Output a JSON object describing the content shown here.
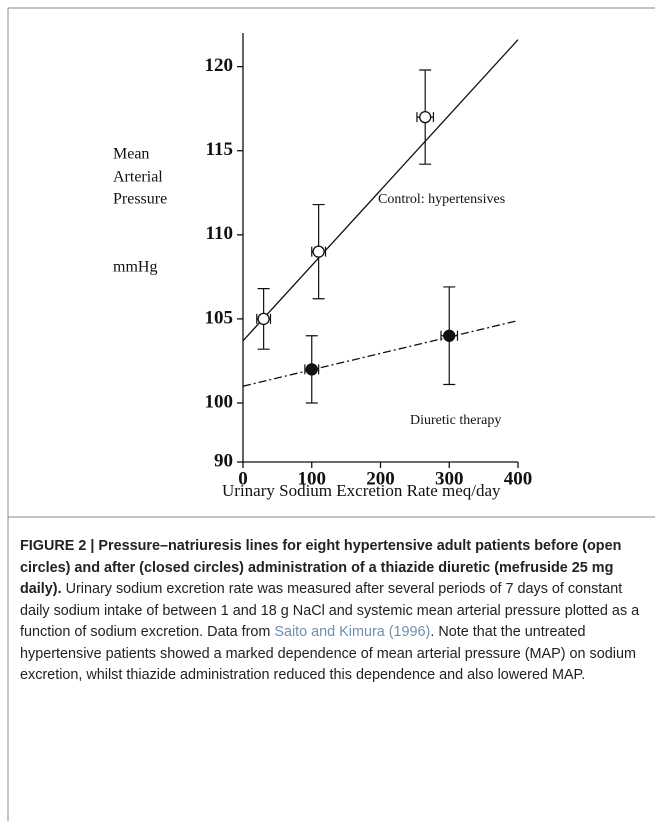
{
  "chart_data": {
    "type": "errorbar-scatter",
    "ylabel": [
      "Mean",
      "Arterial",
      "Pressure"
    ],
    "yunit": "mmHg",
    "xlabel": "Urinary Sodium Excretion Rate meq/day",
    "xlim": [
      0,
      400
    ],
    "xticks": [
      0,
      100,
      200,
      300,
      400
    ],
    "ylim": [
      90,
      122
    ],
    "ybreak": [
      90,
      100
    ],
    "yticks": [
      90,
      100,
      105,
      110,
      115,
      120
    ],
    "series": [
      {
        "name": "Control: hypertensives",
        "marker": "open",
        "color": "#111111",
        "x": [
          30,
          110,
          265
        ],
        "values": [
          105,
          109,
          117
        ],
        "errors": [
          1.8,
          2.8,
          2.8
        ],
        "xerrors": [
          10,
          10,
          12
        ],
        "line": {
          "style": "solid",
          "x": [
            0,
            400
          ],
          "values": [
            103.7,
            121.6
          ]
        }
      },
      {
        "name": "Diuretic therapy",
        "marker": "filled",
        "color": "#111111",
        "x": [
          100,
          300
        ],
        "values": [
          102,
          104
        ],
        "errors": [
          2,
          2.9
        ],
        "xerrors": [
          10,
          12
        ],
        "line": {
          "style": "dashdot",
          "x": [
            0,
            400
          ],
          "values": [
            101,
            104.9
          ]
        }
      }
    ]
  },
  "caption": {
    "bold": "FIGURE 2 | Pressure–natriuresis lines for eight hypertensive adult patients before (open circles) and after (closed circles) administration of a thiazide diuretic (mefruside 25 mg daily).",
    "text_before": " Urinary sodium excretion rate was measured after several periods of 7 days of constant daily sodium intake of between 1 and 18 g NaCl and systemic mean arterial pressure plotted as a function of sodium excretion. Data from ",
    "citation": "Saito and Kimura (1996)",
    "text_after": ". Note that the untreated hypertensive patients showed a marked dependence of mean arterial pressure (MAP) on sodium excretion, whilst thiazide administration reduced this dependence and also lowered MAP."
  }
}
